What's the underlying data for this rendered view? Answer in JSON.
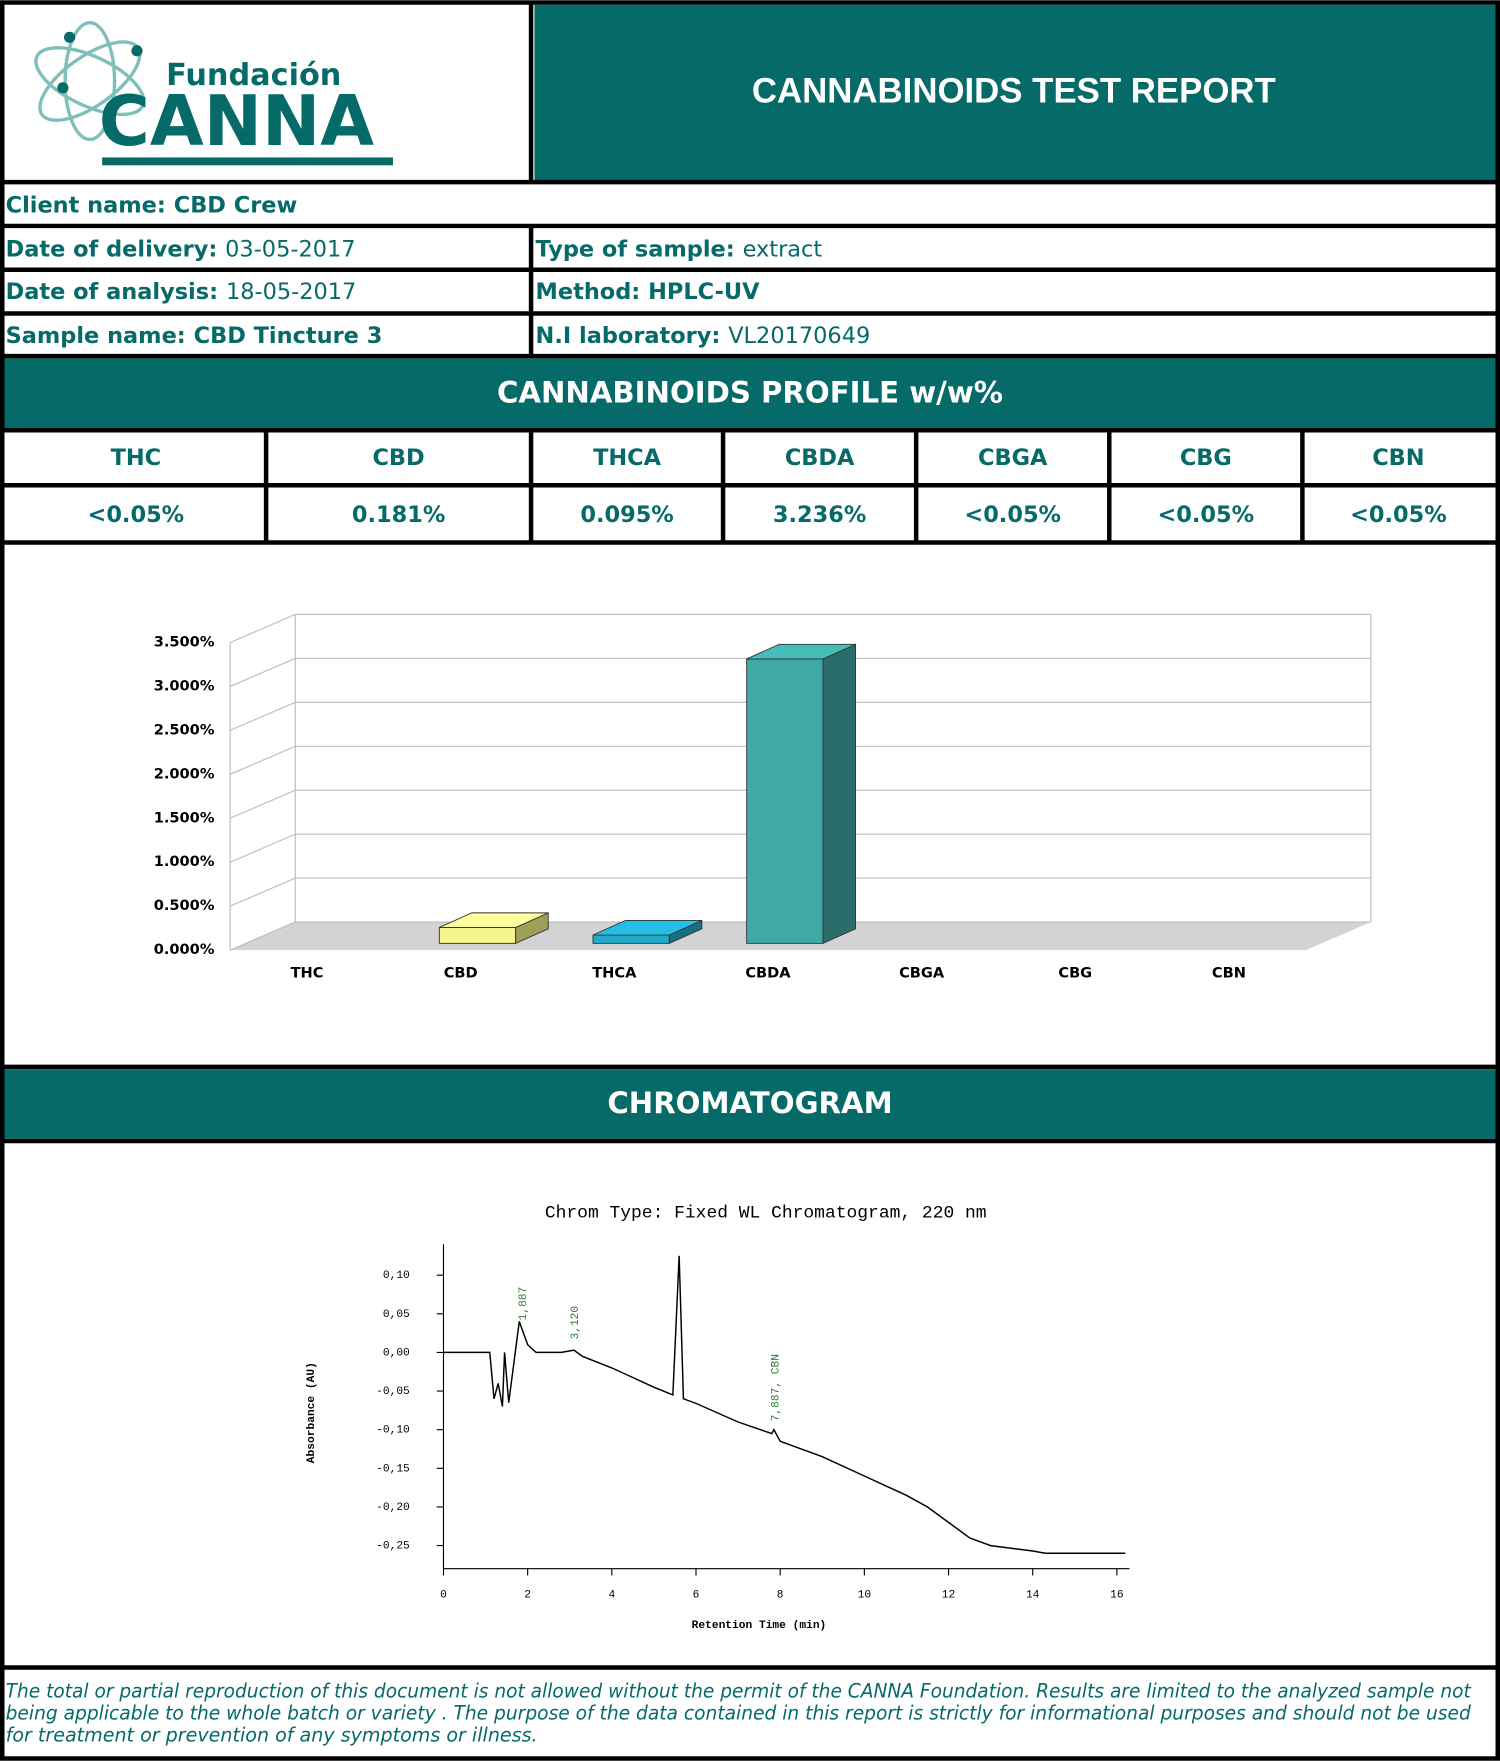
{
  "header": {
    "logo_top": "Fundación",
    "logo_main": "CANNA",
    "title": "CANNABINOIDS TEST REPORT"
  },
  "info": {
    "client": {
      "label": "Client name:",
      "value": "CBD Crew"
    },
    "delivery": {
      "label": "Date of delivery:",
      "value": "03-05-2017"
    },
    "sample_type": {
      "label": "Type of sample:",
      "value": "extract"
    },
    "analysis": {
      "label": "Date of analysis:",
      "value": "18-05-2017"
    },
    "method": {
      "label": "Method:",
      "value": "HPLC-UV"
    },
    "sample": {
      "label": "Sample name:",
      "value": "CBD Tincture 3"
    },
    "lab": {
      "label": "N.I laboratory:",
      "value": "VL20170649"
    }
  },
  "profile": {
    "title": "CANNABINOIDS PROFILE w/w%",
    "headers": [
      "THC",
      "CBD",
      "THCA",
      "CBDA",
      "CBGA",
      "CBG",
      "CBN"
    ],
    "values": [
      "<0.05%",
      "0.181%",
      "0.095%",
      "3.236%",
      "<0.05%",
      "<0.05%",
      "<0.05%"
    ]
  },
  "chromatogram_heading": "CHROMATOGRAM",
  "chart_data": [
    {
      "type": "bar3d",
      "categories": [
        "THC",
        "CBD",
        "THCA",
        "CBDA",
        "CBGA",
        "CBG",
        "CBN"
      ],
      "values": [
        null,
        0.181,
        0.095,
        3.236,
        null,
        null,
        null
      ],
      "colors": [
        null,
        "#f5f58a",
        "#22aacc",
        "#3fa9a5",
        null,
        null,
        null
      ],
      "ylim": [
        0,
        3.5
      ],
      "yticks": [
        {
          "value": 0,
          "label": "0.000%"
        },
        {
          "value": 0.5,
          "label": "0.500%"
        },
        {
          "value": 1,
          "label": "1.000%"
        },
        {
          "value": 1.5,
          "label": "1.500%"
        },
        {
          "value": 2,
          "label": "2.000%"
        },
        {
          "value": 2.5,
          "label": "2.500%"
        },
        {
          "value": 3,
          "label": "3.000%"
        },
        {
          "value": 3.5,
          "label": "3.500%"
        }
      ],
      "grid": true
    },
    {
      "type": "line",
      "title": "Chrom Type: Fixed WL Chromatogram, 220 nm",
      "xlabel": "Retention Time (min)",
      "ylabel": "Absorbance (AU)",
      "x": [
        0,
        1.1,
        1.2,
        1.3,
        1.4,
        1.45,
        1.55,
        1.8,
        2.0,
        2.2,
        2.8,
        3.1,
        3.3,
        4.0,
        5.0,
        5.45,
        5.6,
        5.7,
        6.0,
        7.0,
        7.8,
        7.85,
        8.0,
        9.0,
        10.0,
        11.0,
        11.5,
        12.0,
        12.5,
        13.0,
        14.0,
        14.3,
        16.2
      ],
      "values": [
        0,
        0,
        -0.06,
        -0.04,
        -0.07,
        0,
        -0.065,
        0.04,
        0.01,
        0,
        0,
        0.003,
        -0.005,
        -0.02,
        -0.045,
        -0.055,
        0.125,
        -0.06,
        -0.066,
        -0.09,
        -0.105,
        -0.1,
        -0.115,
        -0.135,
        -0.16,
        -0.185,
        -0.2,
        -0.22,
        -0.24,
        -0.25,
        -0.257,
        -0.26,
        -0.26
      ],
      "color": "#000000",
      "xlim": [
        0,
        16.3
      ],
      "ylim": [
        -0.28,
        0.14
      ],
      "xticks": [
        0,
        2,
        4,
        6,
        8,
        10,
        12,
        14,
        16
      ],
      "yticks": [
        {
          "value": 0.1,
          "label": "0,10"
        },
        {
          "value": 0.05,
          "label": "0,05"
        },
        {
          "value": 0,
          "label": "0,00"
        },
        {
          "value": -0.05,
          "label": "-0,05"
        },
        {
          "value": -0.1,
          "label": "-0,10"
        },
        {
          "value": -0.15,
          "label": "-0,15"
        },
        {
          "value": -0.2,
          "label": "-0,20"
        },
        {
          "value": -0.25,
          "label": "-0,25"
        }
      ],
      "annotations": [
        {
          "value": 1.887,
          "label": "1,887"
        },
        {
          "value": 3.12,
          "label": "3,120"
        },
        {
          "value": 7.887,
          "label": "7,887, CBN"
        }
      ]
    }
  ],
  "footer": {
    "lines": [
      "The total or partial reproduction of this document is not allowed without the permit of the CANNA Foundation. Results are limited to the analyzed sample not",
      "being applicable to the whole batch or variety . The purpose of the data contained in this report is strictly for informational purposes and should not be used",
      "for treatment or prevention of any symptoms or illness."
    ]
  }
}
